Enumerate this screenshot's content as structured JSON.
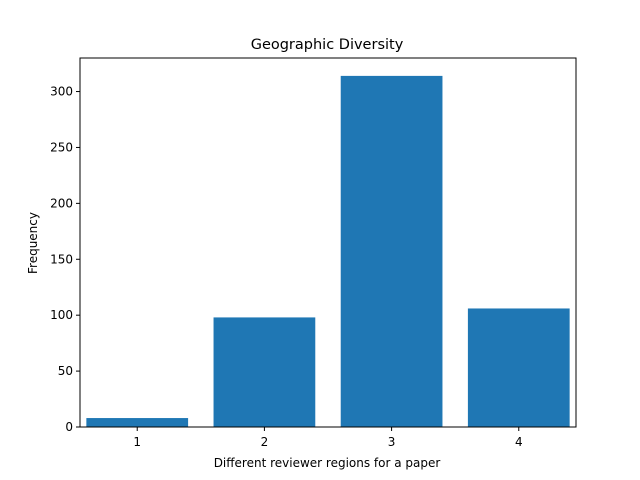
{
  "chart_data": {
    "type": "bar",
    "title": "Geographic Diversity",
    "xlabel": "Different reviewer regions for a paper",
    "ylabel": "Frequency",
    "categories": [
      "1",
      "2",
      "3",
      "4"
    ],
    "values": [
      8,
      98,
      314,
      106
    ],
    "ylim": [
      0,
      330
    ],
    "yticks": [
      0,
      50,
      100,
      150,
      200,
      250,
      300
    ],
    "bar_color": "#1f77b4",
    "grid": false,
    "legend": "none"
  }
}
